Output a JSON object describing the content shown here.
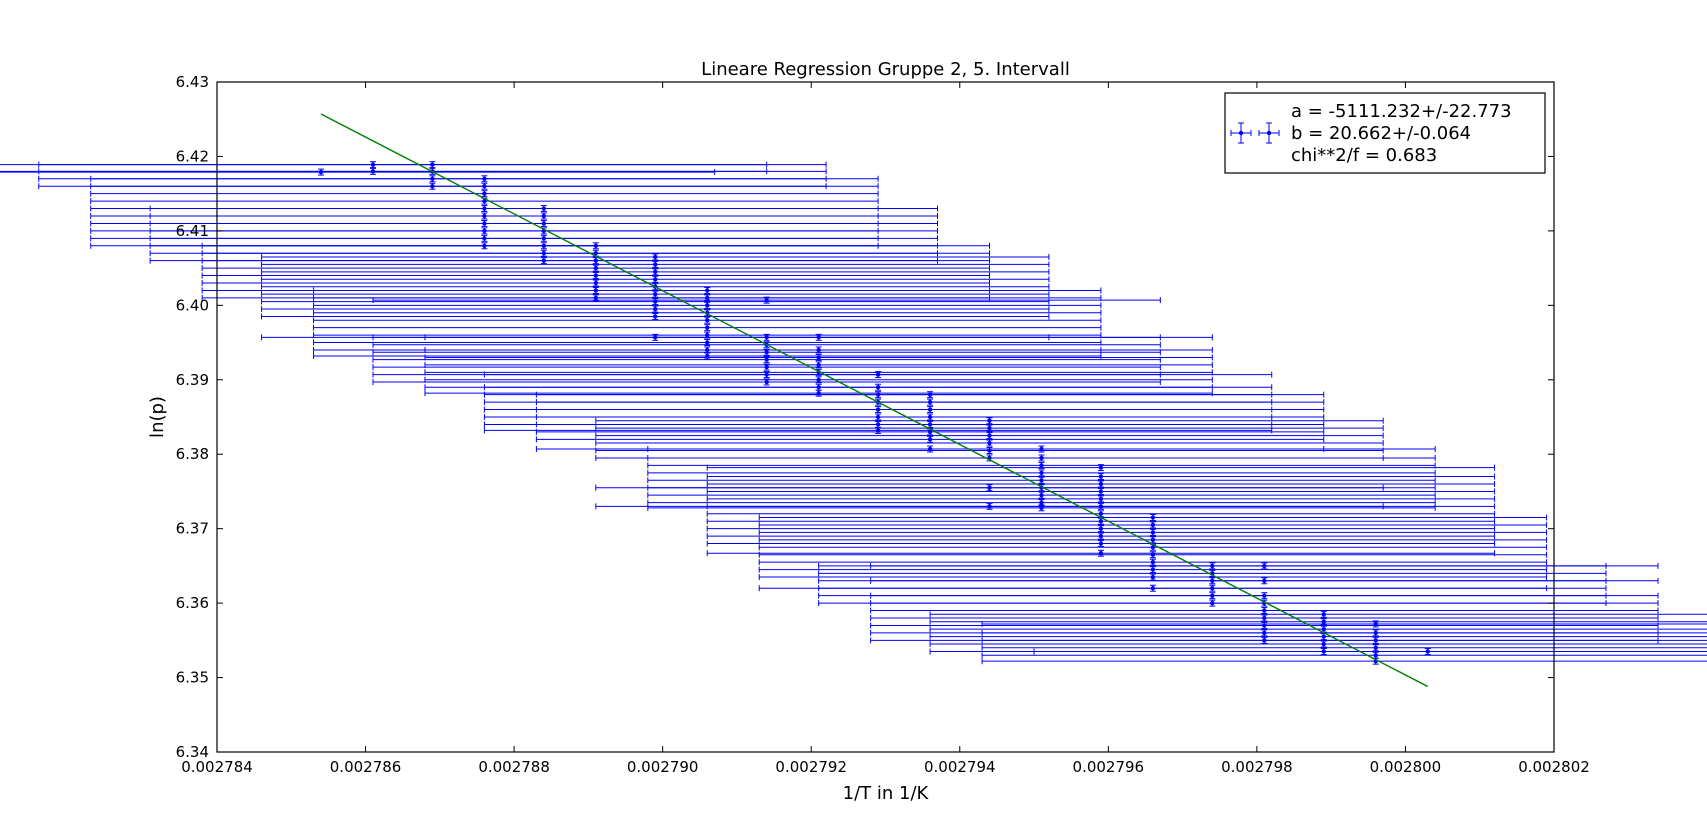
{
  "chart_data": {
    "type": "scatter",
    "title": "Lineare Regression Gruppe 2, 5. Intervall",
    "xlabel": "1/T in 1/K",
    "ylabel": "ln(p)",
    "xlim": [
      0.002784,
      0.002802
    ],
    "ylim": [
      6.34,
      6.43
    ],
    "x_ticks": [
      "0.002784",
      "0.002786",
      "0.002788",
      "0.002790",
      "0.002792",
      "0.002794",
      "0.002796",
      "0.002798",
      "0.002800",
      "0.002802"
    ],
    "y_ticks": [
      "6.34",
      "6.35",
      "6.36",
      "6.37",
      "6.38",
      "6.39",
      "6.40",
      "6.41",
      "6.42",
      "6.43"
    ],
    "grid": false,
    "legend_position": "top-right",
    "colors": {
      "data": "#0000ff",
      "fit": "#008000"
    },
    "legend_lines": [
      "a = -5111.232+/-22.773",
      "b = 20.662+/-0.064",
      "chi**2/f = 0.683"
    ],
    "fit_line": {
      "x": [
        0.0027854,
        0.0028003
      ],
      "y": [
        6.4257,
        6.3488
      ]
    },
    "series": [
      {
        "xerr": 5.3e-06,
        "yerr": 0.0004,
        "points": [
          [
            0.0027854,
            6.4179
          ],
          [
            0.0027861,
            6.4189
          ],
          [
            0.0027861,
            6.418
          ],
          [
            0.0027869,
            6.4189
          ],
          [
            0.0027869,
            6.418
          ],
          [
            0.0027869,
            6.417
          ],
          [
            0.0027869,
            6.416
          ],
          [
            0.0027876,
            6.417
          ],
          [
            0.0027876,
            6.416
          ],
          [
            0.0027876,
            6.415
          ],
          [
            0.0027876,
            6.414
          ],
          [
            0.0027876,
            6.413
          ],
          [
            0.0027876,
            6.412
          ],
          [
            0.0027876,
            6.411
          ],
          [
            0.0027876,
            6.41
          ],
          [
            0.0027876,
            6.409
          ],
          [
            0.0027876,
            6.408
          ],
          [
            0.0027884,
            6.413
          ],
          [
            0.0027884,
            6.412
          ],
          [
            0.0027884,
            6.411
          ],
          [
            0.0027884,
            6.41
          ],
          [
            0.0027884,
            6.409
          ],
          [
            0.0027884,
            6.408
          ],
          [
            0.0027884,
            6.407
          ],
          [
            0.0027884,
            6.406
          ],
          [
            0.0027891,
            6.408
          ],
          [
            0.0027891,
            6.407
          ],
          [
            0.0027891,
            6.406
          ],
          [
            0.0027891,
            6.405
          ],
          [
            0.0027891,
            6.404
          ],
          [
            0.0027891,
            6.403
          ],
          [
            0.0027891,
            6.402
          ],
          [
            0.0027891,
            6.401
          ],
          [
            0.0027899,
            6.4065
          ],
          [
            0.0027899,
            6.4055
          ],
          [
            0.0027899,
            6.4045
          ],
          [
            0.0027899,
            6.4035
          ],
          [
            0.0027899,
            6.4025
          ],
          [
            0.0027899,
            6.4015
          ],
          [
            0.0027899,
            6.4005
          ],
          [
            0.0027899,
            6.3995
          ],
          [
            0.0027899,
            6.3985
          ],
          [
            0.0027899,
            6.3957
          ],
          [
            0.0027906,
            6.402
          ],
          [
            0.0027906,
            6.401
          ],
          [
            0.0027906,
            6.4
          ],
          [
            0.0027906,
            6.399
          ],
          [
            0.0027906,
            6.398
          ],
          [
            0.0027906,
            6.397
          ],
          [
            0.0027906,
            6.396
          ],
          [
            0.0027906,
            6.395
          ],
          [
            0.0027906,
            6.394
          ],
          [
            0.0027906,
            6.3932
          ],
          [
            0.0027914,
            6.4007
          ],
          [
            0.0027914,
            6.3957
          ],
          [
            0.0027914,
            6.3947
          ],
          [
            0.0027914,
            6.3937
          ],
          [
            0.0027914,
            6.3927
          ],
          [
            0.0027914,
            6.3917
          ],
          [
            0.0027914,
            6.3907
          ],
          [
            0.0027914,
            6.3897
          ],
          [
            0.0027921,
            6.3957
          ],
          [
            0.0027921,
            6.394
          ],
          [
            0.0027921,
            6.393
          ],
          [
            0.0027921,
            6.392
          ],
          [
            0.0027921,
            6.391
          ],
          [
            0.0027921,
            6.39
          ],
          [
            0.0027921,
            6.389
          ],
          [
            0.0027921,
            6.3882
          ],
          [
            0.0027929,
            6.3907
          ],
          [
            0.0027929,
            6.389
          ],
          [
            0.0027929,
            6.388
          ],
          [
            0.0027929,
            6.387
          ],
          [
            0.0027929,
            6.386
          ],
          [
            0.0027929,
            6.385
          ],
          [
            0.0027929,
            6.384
          ],
          [
            0.0027929,
            6.3832
          ],
          [
            0.0027936,
            6.388
          ],
          [
            0.0027936,
            6.387
          ],
          [
            0.0027936,
            6.386
          ],
          [
            0.0027936,
            6.385
          ],
          [
            0.0027936,
            6.384
          ],
          [
            0.0027936,
            6.383
          ],
          [
            0.0027936,
            6.382
          ],
          [
            0.0027936,
            6.3807
          ],
          [
            0.0027944,
            6.3845
          ],
          [
            0.0027944,
            6.3835
          ],
          [
            0.0027944,
            6.3825
          ],
          [
            0.0027944,
            6.3815
          ],
          [
            0.0027944,
            6.3805
          ],
          [
            0.0027944,
            6.3795
          ],
          [
            0.0027944,
            6.3755
          ],
          [
            0.0027944,
            6.373
          ],
          [
            0.0027951,
            6.3807
          ],
          [
            0.0027951,
            6.3795
          ],
          [
            0.0027951,
            6.3785
          ],
          [
            0.0027951,
            6.3775
          ],
          [
            0.0027951,
            6.3765
          ],
          [
            0.0027951,
            6.3755
          ],
          [
            0.0027951,
            6.3745
          ],
          [
            0.0027951,
            6.3735
          ],
          [
            0.0027951,
            6.3728
          ],
          [
            0.0027959,
            6.3782
          ],
          [
            0.0027959,
            6.377
          ],
          [
            0.0027959,
            6.376
          ],
          [
            0.0027959,
            6.375
          ],
          [
            0.0027959,
            6.374
          ],
          [
            0.0027959,
            6.373
          ],
          [
            0.0027959,
            6.372
          ],
          [
            0.0027959,
            6.371
          ],
          [
            0.0027959,
            6.37
          ],
          [
            0.0027959,
            6.369
          ],
          [
            0.0027959,
            6.368
          ],
          [
            0.0027959,
            6.3667
          ],
          [
            0.0027966,
            6.3715
          ],
          [
            0.0027966,
            6.3705
          ],
          [
            0.0027966,
            6.3695
          ],
          [
            0.0027966,
            6.3685
          ],
          [
            0.0027966,
            6.3675
          ],
          [
            0.0027966,
            6.3665
          ],
          [
            0.0027966,
            6.3655
          ],
          [
            0.0027966,
            6.3645
          ],
          [
            0.0027966,
            6.3635
          ],
          [
            0.0027966,
            6.362
          ],
          [
            0.0027974,
            6.365
          ],
          [
            0.0027974,
            6.364
          ],
          [
            0.0027974,
            6.363
          ],
          [
            0.0027974,
            6.362
          ],
          [
            0.0027974,
            6.361
          ],
          [
            0.0027974,
            6.36
          ],
          [
            0.0027981,
            6.365
          ],
          [
            0.0027981,
            6.363
          ],
          [
            0.0027981,
            6.361
          ],
          [
            0.0027981,
            6.36
          ],
          [
            0.0027981,
            6.359
          ],
          [
            0.0027981,
            6.358
          ],
          [
            0.0027981,
            6.357
          ],
          [
            0.0027981,
            6.356
          ],
          [
            0.0027981,
            6.355
          ],
          [
            0.0027989,
            6.3585
          ],
          [
            0.0027989,
            6.3575
          ],
          [
            0.0027989,
            6.3565
          ],
          [
            0.0027989,
            6.3555
          ],
          [
            0.0027989,
            6.3545
          ],
          [
            0.0027989,
            6.3535
          ],
          [
            0.0027996,
            6.3572
          ],
          [
            0.0027996,
            6.356
          ],
          [
            0.0027996,
            6.355
          ],
          [
            0.0027996,
            6.354
          ],
          [
            0.0027996,
            6.353
          ],
          [
            0.0027996,
            6.3522
          ],
          [
            0.0028003,
            6.3535
          ]
        ]
      }
    ]
  }
}
